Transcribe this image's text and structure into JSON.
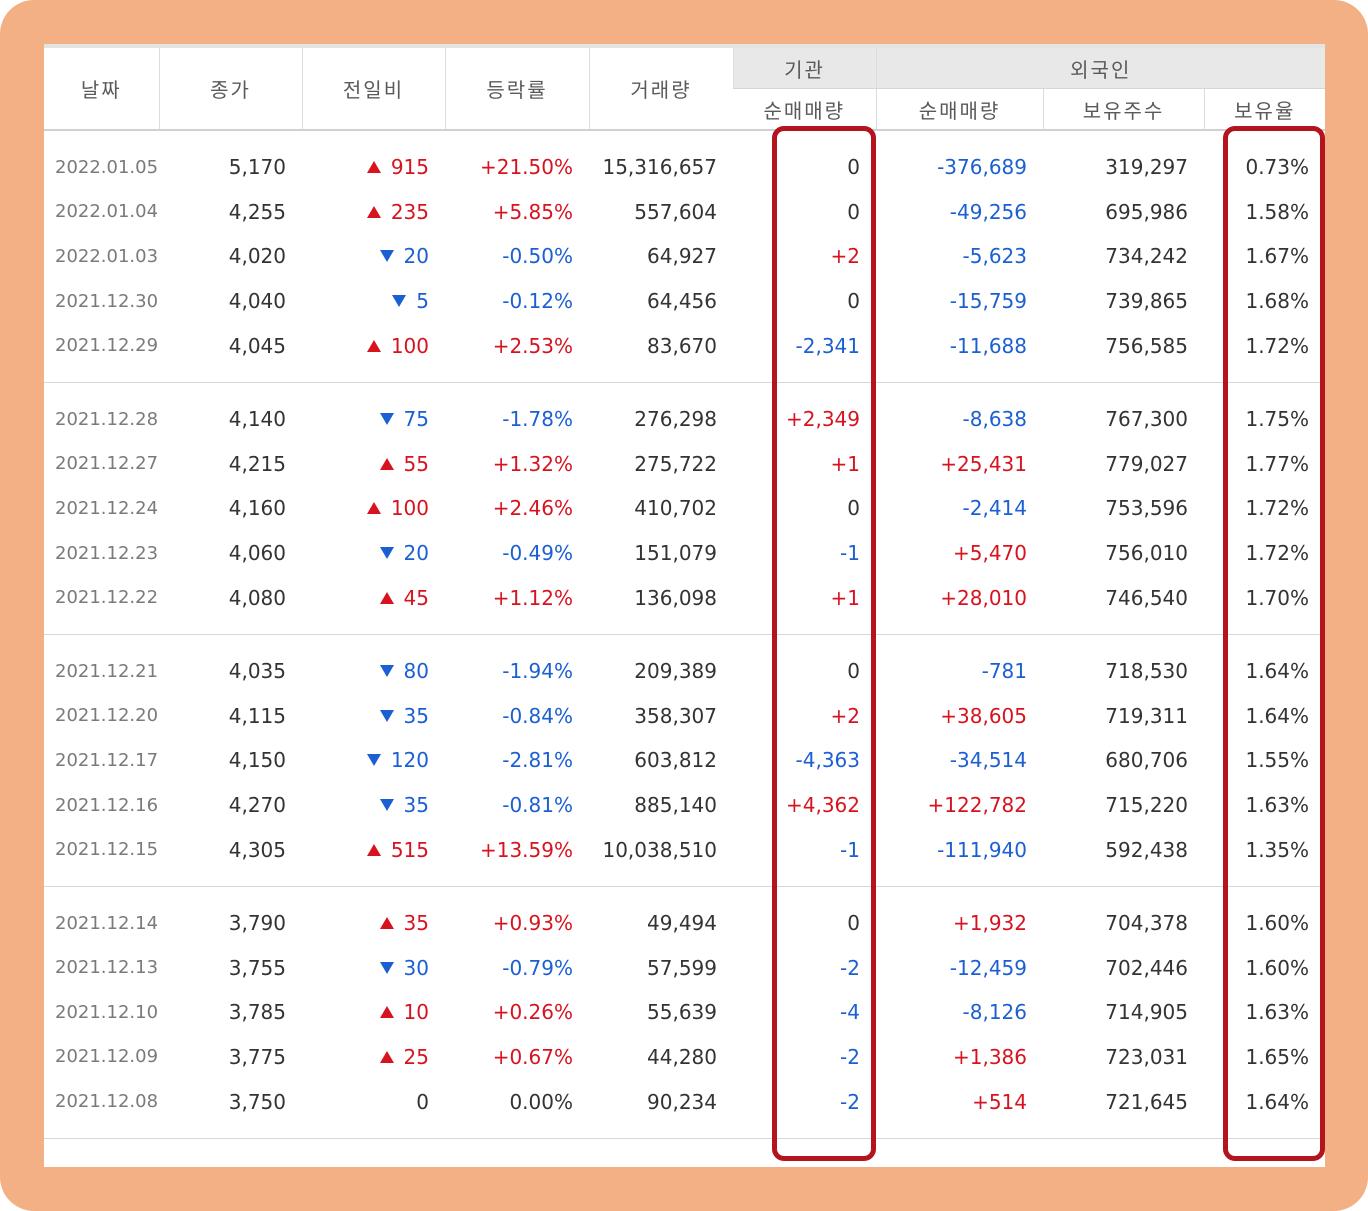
{
  "headers": {
    "date": "날짜",
    "close": "종가",
    "change": "전일비",
    "rate": "등락률",
    "volume": "거래량",
    "institution": "기관",
    "inst_net": "순매매량",
    "foreign": "외국인",
    "foreign_net": "순매매량",
    "foreign_shares": "보유주수",
    "foreign_ratio": "보유율"
  },
  "colors": {
    "up": "#d7131f",
    "down": "#1b5fd3",
    "highlight": "#b3141e",
    "frame": "#f2b084"
  },
  "groups": [
    [
      {
        "date": "2022.01.05",
        "close": "5,170",
        "dir": "up",
        "change": "915",
        "rate": "+21.50%",
        "volume": "15,316,657",
        "inst": "0",
        "foreign": "-376,689",
        "shares": "319,297",
        "ratio": "0.73%"
      },
      {
        "date": "2022.01.04",
        "close": "4,255",
        "dir": "up",
        "change": "235",
        "rate": "+5.85%",
        "volume": "557,604",
        "inst": "0",
        "foreign": "-49,256",
        "shares": "695,986",
        "ratio": "1.58%"
      },
      {
        "date": "2022.01.03",
        "close": "4,020",
        "dir": "down",
        "change": "20",
        "rate": "-0.50%",
        "volume": "64,927",
        "inst": "+2",
        "foreign": "-5,623",
        "shares": "734,242",
        "ratio": "1.67%"
      },
      {
        "date": "2021.12.30",
        "close": "4,040",
        "dir": "down",
        "change": "5",
        "rate": "-0.12%",
        "volume": "64,456",
        "inst": "0",
        "foreign": "-15,759",
        "shares": "739,865",
        "ratio": "1.68%"
      },
      {
        "date": "2021.12.29",
        "close": "4,045",
        "dir": "up",
        "change": "100",
        "rate": "+2.53%",
        "volume": "83,670",
        "inst": "-2,341",
        "foreign": "-11,688",
        "shares": "756,585",
        "ratio": "1.72%"
      }
    ],
    [
      {
        "date": "2021.12.28",
        "close": "4,140",
        "dir": "down",
        "change": "75",
        "rate": "-1.78%",
        "volume": "276,298",
        "inst": "+2,349",
        "foreign": "-8,638",
        "shares": "767,300",
        "ratio": "1.75%"
      },
      {
        "date": "2021.12.27",
        "close": "4,215",
        "dir": "up",
        "change": "55",
        "rate": "+1.32%",
        "volume": "275,722",
        "inst": "+1",
        "foreign": "+25,431",
        "shares": "779,027",
        "ratio": "1.77%"
      },
      {
        "date": "2021.12.24",
        "close": "4,160",
        "dir": "up",
        "change": "100",
        "rate": "+2.46%",
        "volume": "410,702",
        "inst": "0",
        "foreign": "-2,414",
        "shares": "753,596",
        "ratio": "1.72%"
      },
      {
        "date": "2021.12.23",
        "close": "4,060",
        "dir": "down",
        "change": "20",
        "rate": "-0.49%",
        "volume": "151,079",
        "inst": "-1",
        "foreign": "+5,470",
        "shares": "756,010",
        "ratio": "1.72%"
      },
      {
        "date": "2021.12.22",
        "close": "4,080",
        "dir": "up",
        "change": "45",
        "rate": "+1.12%",
        "volume": "136,098",
        "inst": "+1",
        "foreign": "+28,010",
        "shares": "746,540",
        "ratio": "1.70%"
      }
    ],
    [
      {
        "date": "2021.12.21",
        "close": "4,035",
        "dir": "down",
        "change": "80",
        "rate": "-1.94%",
        "volume": "209,389",
        "inst": "0",
        "foreign": "-781",
        "shares": "718,530",
        "ratio": "1.64%"
      },
      {
        "date": "2021.12.20",
        "close": "4,115",
        "dir": "down",
        "change": "35",
        "rate": "-0.84%",
        "volume": "358,307",
        "inst": "+2",
        "foreign": "+38,605",
        "shares": "719,311",
        "ratio": "1.64%"
      },
      {
        "date": "2021.12.17",
        "close": "4,150",
        "dir": "down",
        "change": "120",
        "rate": "-2.81%",
        "volume": "603,812",
        "inst": "-4,363",
        "foreign": "-34,514",
        "shares": "680,706",
        "ratio": "1.55%"
      },
      {
        "date": "2021.12.16",
        "close": "4,270",
        "dir": "down",
        "change": "35",
        "rate": "-0.81%",
        "volume": "885,140",
        "inst": "+4,362",
        "foreign": "+122,782",
        "shares": "715,220",
        "ratio": "1.63%"
      },
      {
        "date": "2021.12.15",
        "close": "4,305",
        "dir": "up",
        "change": "515",
        "rate": "+13.59%",
        "volume": "10,038,510",
        "inst": "-1",
        "foreign": "-111,940",
        "shares": "592,438",
        "ratio": "1.35%"
      }
    ],
    [
      {
        "date": "2021.12.14",
        "close": "3,790",
        "dir": "up",
        "change": "35",
        "rate": "+0.93%",
        "volume": "49,494",
        "inst": "0",
        "foreign": "+1,932",
        "shares": "704,378",
        "ratio": "1.60%"
      },
      {
        "date": "2021.12.13",
        "close": "3,755",
        "dir": "down",
        "change": "30",
        "rate": "-0.79%",
        "volume": "57,599",
        "inst": "-2",
        "foreign": "-12,459",
        "shares": "702,446",
        "ratio": "1.60%"
      },
      {
        "date": "2021.12.10",
        "close": "3,785",
        "dir": "up",
        "change": "10",
        "rate": "+0.26%",
        "volume": "55,639",
        "inst": "-4",
        "foreign": "-8,126",
        "shares": "714,905",
        "ratio": "1.63%"
      },
      {
        "date": "2021.12.09",
        "close": "3,775",
        "dir": "up",
        "change": "25",
        "rate": "+0.67%",
        "volume": "44,280",
        "inst": "-2",
        "foreign": "+1,386",
        "shares": "723,031",
        "ratio": "1.65%"
      },
      {
        "date": "2021.12.08",
        "close": "3,750",
        "dir": "flat",
        "change": "0",
        "rate": "0.00%",
        "volume": "90,234",
        "inst": "-2",
        "foreign": "+514",
        "shares": "721,645",
        "ratio": "1.64%"
      }
    ]
  ]
}
